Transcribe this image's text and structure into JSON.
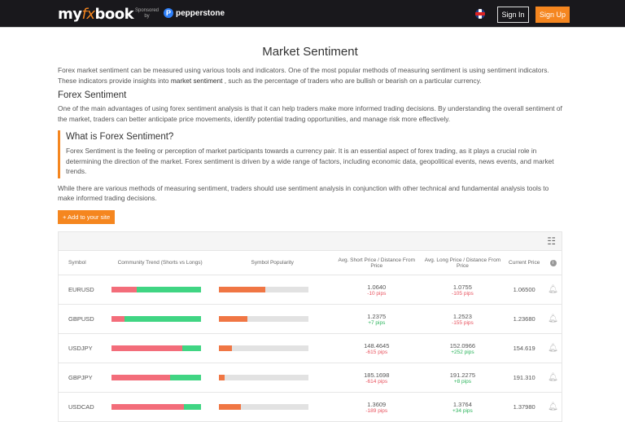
{
  "nav": {
    "logo_pre": "my",
    "logo_fx": "fx",
    "logo_post": "book",
    "sponsored": "Sponsored",
    "by": "by",
    "sponsor": "pepperstone",
    "sign_in": "Sign In",
    "sign_up": "Sign Up",
    "language_icon": "uk-flag-icon"
  },
  "page": {
    "title": "Market Sentiment",
    "intro_a": "Forex market sentiment can be measured using various tools and indicators. One of the most popular methods of measuring sentiment is using sentiment indicators. These indicators provide insights into ",
    "intro_bold": "market sentiment",
    "intro_b": " , such as the percentage of traders who are bullish or bearish on a particular currency.",
    "h2": "Forex Sentiment",
    "p2": "One of the main advantages of using forex sentiment analysis is that it can help traders make more informed trading decisions. By understanding the overall sentiment of the market, traders can better anticipate price movements, identify potential trading opportunities, and manage risk more effectively.",
    "box_title": "What is Forex Sentiment?",
    "box_text": "Forex Sentiment is the feeling or perception of market participants towards a currency pair. It is an essential aspect of forex trading, as it plays a crucial role in determining the direction of the market. Forex sentiment is driven by a wide range of factors, including economic data, geopolitical events, news events, and market trends.",
    "p3": "While there are various methods of measuring sentiment, traders should use sentiment analysis in conjunction with other technical and fundamental analysis tools to make informed trading decisions.",
    "add_button": "+ Add to your site"
  },
  "table": {
    "headers": {
      "symbol": "Symbol",
      "trend": "Community Trend (Shorts vs Longs)",
      "popularity": "Symbol Popularity",
      "short": "Avg. Short Price / Distance From Price",
      "long": "Avg. Long Price / Distance From Price",
      "current": "Current Price"
    },
    "colors": {
      "short": "#f36d7a",
      "long": "#40d583",
      "popularity": "#f07644"
    },
    "rows": [
      {
        "symbol": "EURUSD",
        "short_pct": 28,
        "popularity_pct": 51,
        "avg_short": "1.0640",
        "short_dist": "-10 pips",
        "short_pos": false,
        "avg_long": "1.0755",
        "long_dist": "-105 pips",
        "long_pos": false,
        "current": "1.06500"
      },
      {
        "symbol": "GBPUSD",
        "short_pct": 15,
        "popularity_pct": 31,
        "avg_short": "1.2375",
        "short_dist": "+7 pips",
        "short_pos": true,
        "avg_long": "1.2523",
        "long_dist": "-155 pips",
        "long_pos": false,
        "current": "1.23680"
      },
      {
        "symbol": "USDJPY",
        "short_pct": 79,
        "popularity_pct": 14,
        "avg_short": "148.4645",
        "short_dist": "-615 pips",
        "short_pos": false,
        "avg_long": "152.0966",
        "long_dist": "+252 pips",
        "long_pos": true,
        "current": "154.619"
      },
      {
        "symbol": "GBPJPY",
        "short_pct": 66,
        "popularity_pct": 6,
        "avg_short": "185.1698",
        "short_dist": "-614 pips",
        "short_pos": false,
        "avg_long": "191.2275",
        "long_dist": "+8 pips",
        "long_pos": true,
        "current": "191.310"
      },
      {
        "symbol": "USDCAD",
        "short_pct": 81,
        "popularity_pct": 24,
        "avg_short": "1.3609",
        "short_dist": "-189 pips",
        "short_pos": false,
        "avg_long": "1.3764",
        "long_dist": "+34 pips",
        "long_pos": true,
        "current": "1.37980"
      }
    ]
  }
}
